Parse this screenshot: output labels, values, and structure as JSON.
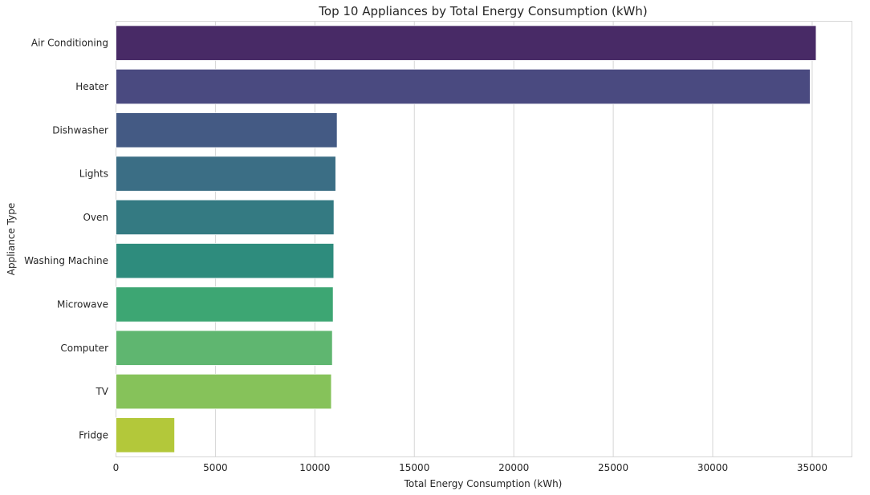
{
  "chart_data": {
    "type": "bar",
    "orientation": "horizontal",
    "title": "Top 10 Appliances by Total Energy Consumption (kWh)",
    "xlabel": "Total Energy Consumption (kWh)",
    "ylabel": "Appliance Type",
    "categories": [
      "Air Conditioning",
      "Heater",
      "Dishwasher",
      "Lights",
      "Oven",
      "Washing Machine",
      "Microwave",
      "Computer",
      "TV",
      "Fridge"
    ],
    "values": [
      35200,
      34900,
      11120,
      11050,
      10960,
      10950,
      10920,
      10880,
      10830,
      2950
    ],
    "colors": [
      "#482a66",
      "#4a4a80",
      "#445a84",
      "#3b6e85",
      "#347a82",
      "#2e8c7d",
      "#3da673",
      "#5fb670",
      "#86c25a",
      "#b3c83a"
    ],
    "xlim": [
      0,
      37000
    ],
    "xticks": [
      0,
      5000,
      10000,
      15000,
      20000,
      25000,
      30000,
      35000
    ],
    "grid": "x",
    "legend": "none"
  }
}
